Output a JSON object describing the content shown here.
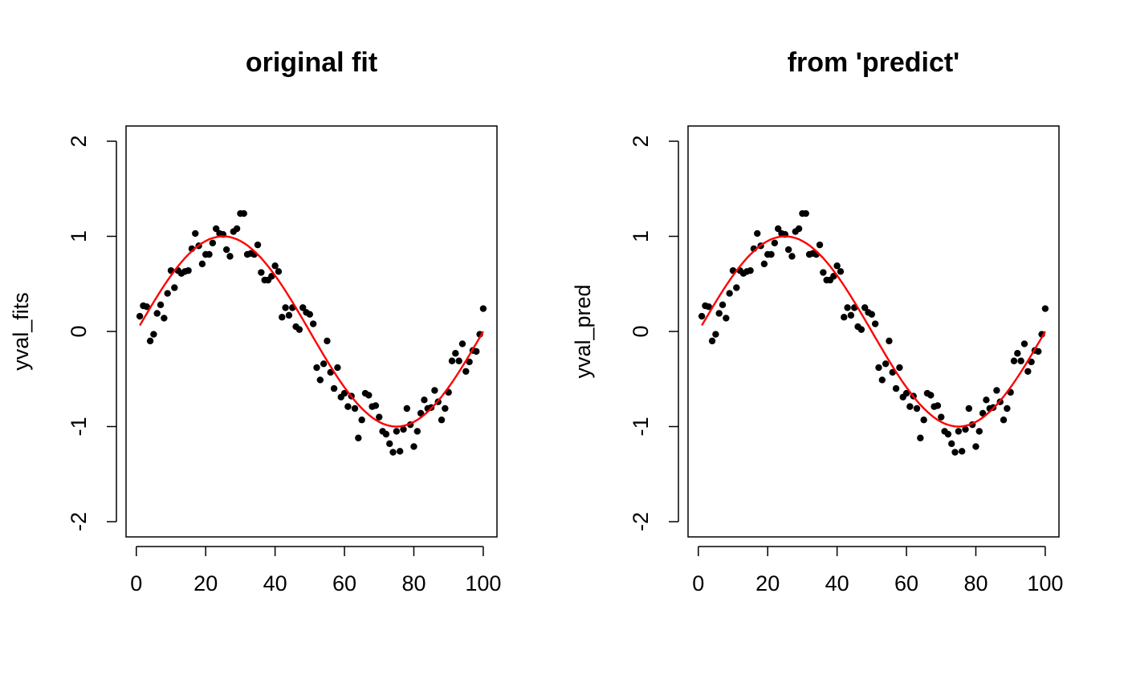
{
  "chart_data": [
    {
      "type": "line",
      "title": "original fit",
      "y_label": "yval_fits",
      "xlim": [
        -2.96,
        103.96
      ],
      "ylim": [
        -2.16,
        2.16
      ],
      "xticks": [
        0,
        20,
        40,
        60,
        80,
        100
      ],
      "yticks": [
        -2,
        -1,
        0,
        1,
        2
      ],
      "x": [
        1,
        2,
        3,
        4,
        5,
        6,
        7,
        8,
        9,
        10,
        11,
        12,
        13,
        14,
        15,
        16,
        17,
        18,
        19,
        20,
        21,
        22,
        23,
        24,
        25,
        26,
        27,
        28,
        29,
        30,
        31,
        32,
        33,
        34,
        35,
        36,
        37,
        38,
        39,
        40,
        41,
        42,
        43,
        44,
        45,
        46,
        47,
        48,
        49,
        50,
        51,
        52,
        53,
        54,
        55,
        56,
        57,
        58,
        59,
        60,
        61,
        62,
        63,
        64,
        65,
        66,
        67,
        68,
        69,
        70,
        71,
        72,
        73,
        74,
        75,
        76,
        77,
        78,
        79,
        80,
        81,
        82,
        83,
        84,
        85,
        86,
        87,
        88,
        89,
        90,
        91,
        92,
        93,
        94,
        95,
        96,
        97,
        98,
        99,
        100
      ],
      "series": [
        {
          "color": "#000000",
          "marker": "point",
          "values": [
            0.16,
            0.27,
            0.26,
            -0.1,
            -0.03,
            0.19,
            0.28,
            0.14,
            0.4,
            0.64,
            0.46,
            0.64,
            0.61,
            0.63,
            0.64,
            0.87,
            1.03,
            0.9,
            0.71,
            0.81,
            0.81,
            0.93,
            1.08,
            1.03,
            1.02,
            0.86,
            0.79,
            1.05,
            1.08,
            1.24,
            1.24,
            0.81,
            0.82,
            0.81,
            0.91,
            0.62,
            0.54,
            0.54,
            0.58,
            0.69,
            0.63,
            0.15,
            0.25,
            0.17,
            0.25,
            0.05,
            0.02,
            0.25,
            0.2,
            0.18,
            0.08,
            -0.38,
            -0.51,
            -0.34,
            -0.1,
            -0.43,
            -0.6,
            -0.38,
            -0.69,
            -0.65,
            -0.79,
            -0.68,
            -0.81,
            -1.12,
            -0.93,
            -0.65,
            -0.67,
            -0.79,
            -0.78,
            -0.9,
            -1.05,
            -1.08,
            -1.18,
            -1.27,
            -1.05,
            -1.26,
            -1.03,
            -0.81,
            -0.98,
            -1.21,
            -1.05,
            -0.86,
            -0.72,
            -0.81,
            -0.8,
            -0.62,
            -0.74,
            -0.93,
            -0.81,
            -0.64,
            -0.31,
            -0.23,
            -0.31,
            -0.13,
            -0.42,
            -0.32,
            -0.2,
            -0.21,
            -0.03,
            0.24
          ]
        },
        {
          "color": "#ff0000",
          "marker": "line",
          "values": [
            0.063,
            0.125,
            0.187,
            0.249,
            0.309,
            0.368,
            0.426,
            0.482,
            0.536,
            0.588,
            0.637,
            0.685,
            0.729,
            0.771,
            0.809,
            0.844,
            0.876,
            0.905,
            0.93,
            0.951,
            0.969,
            0.982,
            0.992,
            0.998,
            1,
            0.998,
            0.992,
            0.982,
            0.969,
            0.951,
            0.93,
            0.905,
            0.876,
            0.844,
            0.809,
            0.771,
            0.729,
            0.685,
            0.637,
            0.588,
            0.536,
            0.482,
            0.426,
            0.368,
            0.309,
            0.249,
            0.187,
            0.125,
            0.063,
            0,
            -0.063,
            -0.125,
            -0.187,
            -0.249,
            -0.309,
            -0.368,
            -0.426,
            -0.482,
            -0.536,
            -0.588,
            -0.637,
            -0.685,
            -0.729,
            -0.771,
            -0.809,
            -0.844,
            -0.876,
            -0.905,
            -0.93,
            -0.951,
            -0.969,
            -0.982,
            -0.992,
            -0.998,
            -1,
            -0.998,
            -0.992,
            -0.982,
            -0.969,
            -0.951,
            -0.93,
            -0.905,
            -0.876,
            -0.844,
            -0.809,
            -0.771,
            -0.729,
            -0.685,
            -0.637,
            -0.588,
            -0.536,
            -0.482,
            -0.426,
            -0.368,
            -0.309,
            -0.249,
            -0.187,
            -0.125,
            -0.063,
            0
          ]
        }
      ]
    },
    {
      "type": "line",
      "title": "from 'predict'",
      "y_label": "yval_pred",
      "xlim": [
        -2.96,
        103.96
      ],
      "ylim": [
        -2.16,
        2.16
      ],
      "xticks": [
        0,
        20,
        40,
        60,
        80,
        100
      ],
      "yticks": [
        -2,
        -1,
        0,
        1,
        2
      ],
      "x": [
        1,
        2,
        3,
        4,
        5,
        6,
        7,
        8,
        9,
        10,
        11,
        12,
        13,
        14,
        15,
        16,
        17,
        18,
        19,
        20,
        21,
        22,
        23,
        24,
        25,
        26,
        27,
        28,
        29,
        30,
        31,
        32,
        33,
        34,
        35,
        36,
        37,
        38,
        39,
        40,
        41,
        42,
        43,
        44,
        45,
        46,
        47,
        48,
        49,
        50,
        51,
        52,
        53,
        54,
        55,
        56,
        57,
        58,
        59,
        60,
        61,
        62,
        63,
        64,
        65,
        66,
        67,
        68,
        69,
        70,
        71,
        72,
        73,
        74,
        75,
        76,
        77,
        78,
        79,
        80,
        81,
        82,
        83,
        84,
        85,
        86,
        87,
        88,
        89,
        90,
        91,
        92,
        93,
        94,
        95,
        96,
        97,
        98,
        99,
        100
      ],
      "series": [
        {
          "color": "#000000",
          "marker": "point",
          "values": [
            0.16,
            0.27,
            0.26,
            -0.1,
            -0.03,
            0.19,
            0.28,
            0.14,
            0.4,
            0.64,
            0.46,
            0.64,
            0.61,
            0.63,
            0.64,
            0.87,
            1.03,
            0.9,
            0.71,
            0.81,
            0.81,
            0.93,
            1.08,
            1.03,
            1.02,
            0.86,
            0.79,
            1.05,
            1.08,
            1.24,
            1.24,
            0.81,
            0.82,
            0.81,
            0.91,
            0.62,
            0.54,
            0.54,
            0.58,
            0.69,
            0.63,
            0.15,
            0.25,
            0.17,
            0.25,
            0.05,
            0.02,
            0.25,
            0.2,
            0.18,
            0.08,
            -0.38,
            -0.51,
            -0.34,
            -0.1,
            -0.43,
            -0.6,
            -0.38,
            -0.69,
            -0.65,
            -0.79,
            -0.68,
            -0.81,
            -1.12,
            -0.93,
            -0.65,
            -0.67,
            -0.79,
            -0.78,
            -0.9,
            -1.05,
            -1.08,
            -1.18,
            -1.27,
            -1.05,
            -1.26,
            -1.03,
            -0.81,
            -0.98,
            -1.21,
            -1.05,
            -0.86,
            -0.72,
            -0.81,
            -0.8,
            -0.62,
            -0.74,
            -0.93,
            -0.81,
            -0.64,
            -0.31,
            -0.23,
            -0.31,
            -0.13,
            -0.42,
            -0.32,
            -0.2,
            -0.21,
            -0.03,
            0.24
          ]
        },
        {
          "color": "#ff0000",
          "marker": "line",
          "values": [
            0.063,
            0.125,
            0.187,
            0.249,
            0.309,
            0.368,
            0.426,
            0.482,
            0.536,
            0.588,
            0.637,
            0.685,
            0.729,
            0.771,
            0.809,
            0.844,
            0.876,
            0.905,
            0.93,
            0.951,
            0.969,
            0.982,
            0.992,
            0.998,
            1,
            0.998,
            0.992,
            0.982,
            0.969,
            0.951,
            0.93,
            0.905,
            0.876,
            0.844,
            0.809,
            0.771,
            0.729,
            0.685,
            0.637,
            0.588,
            0.536,
            0.482,
            0.426,
            0.368,
            0.309,
            0.249,
            0.187,
            0.125,
            0.063,
            0,
            -0.063,
            -0.125,
            -0.187,
            -0.249,
            -0.309,
            -0.368,
            -0.426,
            -0.482,
            -0.536,
            -0.588,
            -0.637,
            -0.685,
            -0.729,
            -0.771,
            -0.809,
            -0.844,
            -0.876,
            -0.905,
            -0.93,
            -0.951,
            -0.969,
            -0.982,
            -0.992,
            -0.998,
            -1,
            -0.998,
            -0.992,
            -0.982,
            -0.969,
            -0.951,
            -0.93,
            -0.905,
            -0.876,
            -0.844,
            -0.809,
            -0.771,
            -0.729,
            -0.685,
            -0.637,
            -0.588,
            -0.536,
            -0.482,
            -0.426,
            -0.368,
            -0.309,
            -0.249,
            -0.187,
            -0.125,
            -0.063,
            0
          ]
        }
      ]
    }
  ]
}
